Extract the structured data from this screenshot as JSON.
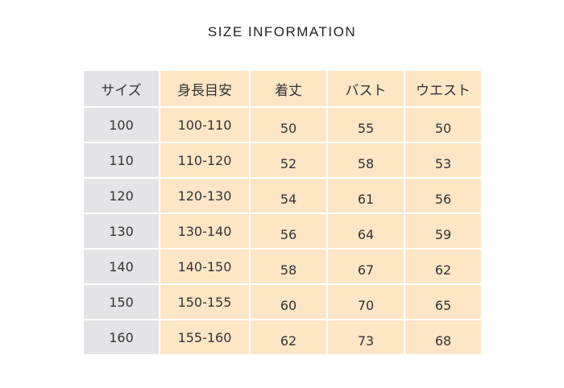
{
  "title": "SIZE INFORMATION",
  "headers": [
    "サイズ",
    "身長目安",
    "着丈",
    "バスト",
    "ウエスト"
  ],
  "rows": [
    [
      "100",
      "100-110",
      "50",
      "55",
      "50"
    ],
    [
      "110",
      "110-120",
      "52",
      "58",
      "53"
    ],
    [
      "120",
      "120-130",
      "54",
      "61",
      "56"
    ],
    [
      "130",
      "130-140",
      "56",
      "64",
      "59"
    ],
    [
      "140",
      "140-150",
      "58",
      "67",
      "62"
    ],
    [
      "150",
      "150-155",
      "60",
      "70",
      "65"
    ],
    [
      "160",
      "155-160",
      "62",
      "73",
      "68"
    ]
  ],
  "colors": {
    "size_column": "#e4e4e6",
    "data_cells": "#fde6c6"
  }
}
